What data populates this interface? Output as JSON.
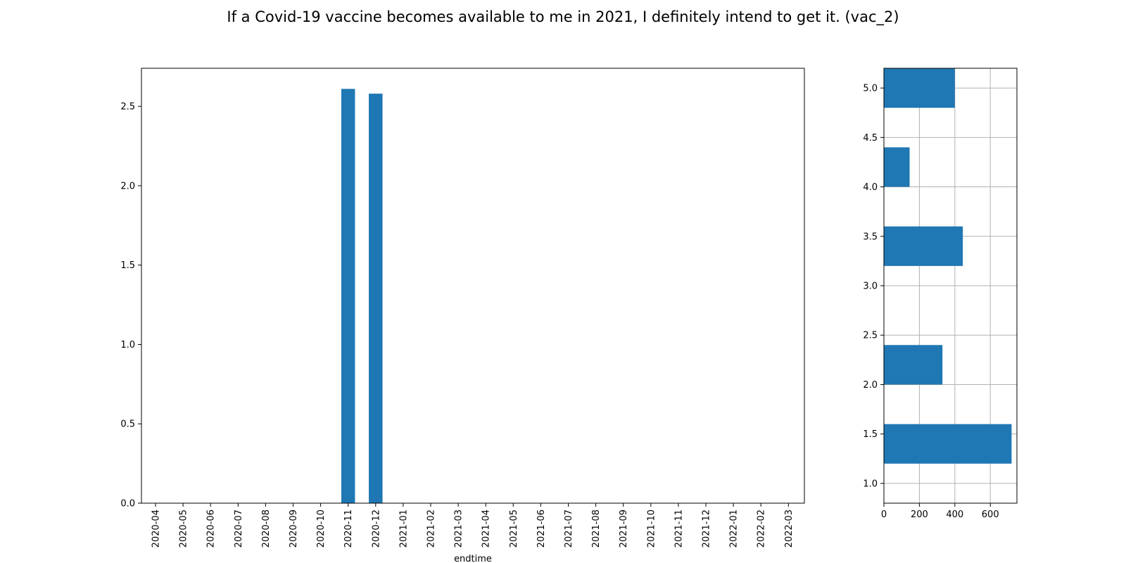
{
  "title": "If a Covid-19 vaccine becomes available to me in 2021, I definitely intend to get it. (vac_2)",
  "colors": {
    "bar": "#1f77b4",
    "grid": "#b0b0b0",
    "axis": "#000000"
  },
  "chart_data": [
    {
      "type": "bar",
      "xlabel": "endtime",
      "ylabel": "",
      "ylim": [
        0,
        2.74
      ],
      "grid": false,
      "categories": [
        "2020-04",
        "2020-05",
        "2020-06",
        "2020-07",
        "2020-08",
        "2020-09",
        "2020-10",
        "2020-11",
        "2020-12",
        "2021-01",
        "2021-02",
        "2021-03",
        "2021-04",
        "2021-05",
        "2021-06",
        "2021-07",
        "2021-08",
        "2021-09",
        "2021-10",
        "2021-11",
        "2021-12",
        "2022-01",
        "2022-02",
        "2022-03"
      ],
      "values": [
        0,
        0,
        0,
        0,
        0,
        0,
        0,
        2.61,
        2.58,
        0,
        0,
        0,
        0,
        0,
        0,
        0,
        0,
        0,
        0,
        0,
        0,
        0,
        0,
        0
      ],
      "yticks": [
        "0.0",
        "0.5",
        "1.0",
        "1.5",
        "2.0",
        "2.5"
      ]
    },
    {
      "type": "bar",
      "orientation": "horizontal",
      "grid": true,
      "xlim": [
        0,
        750
      ],
      "ylim": [
        0.8,
        5.2
      ],
      "bars": [
        {
          "y": 1.2,
          "value": 720
        },
        {
          "y": 2.0,
          "value": 330
        },
        {
          "y": 3.2,
          "value": 445
        },
        {
          "y": 4.0,
          "value": 145
        },
        {
          "y": 4.8,
          "value": 400
        }
      ],
      "xticks": [
        "0",
        "200",
        "400",
        "600"
      ],
      "yticks": [
        "1.0",
        "1.5",
        "2.0",
        "2.5",
        "3.0",
        "3.5",
        "4.0",
        "4.5",
        "5.0"
      ]
    }
  ]
}
